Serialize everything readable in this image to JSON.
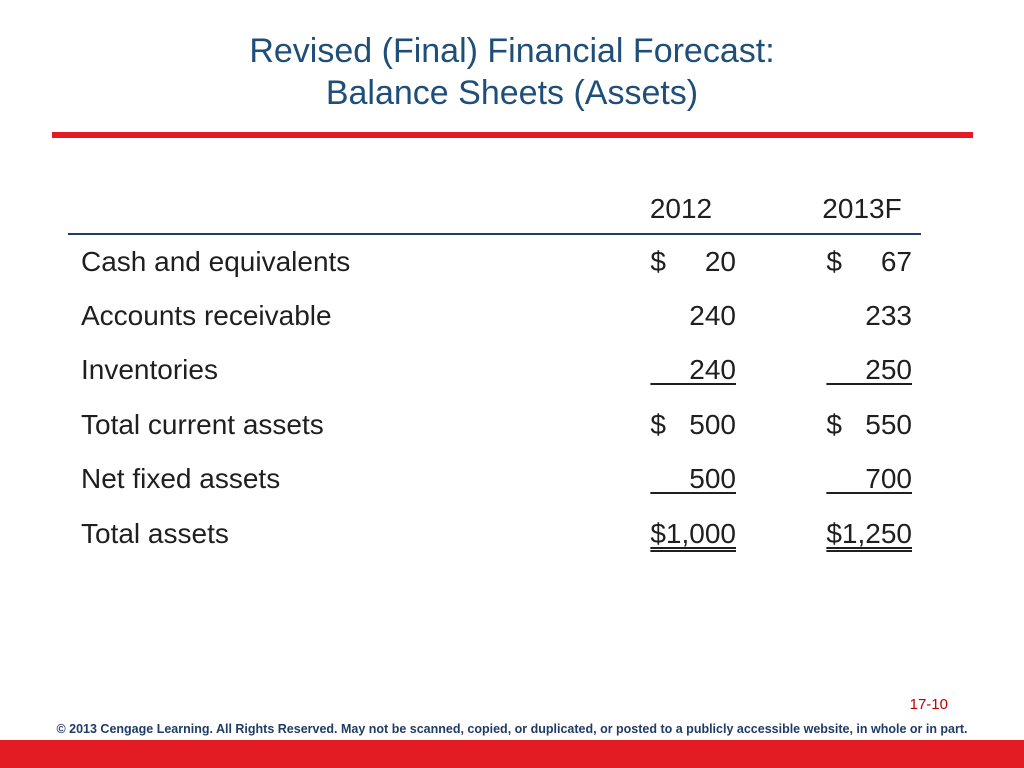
{
  "title": {
    "line1": "Revised (Final) Financial Forecast:",
    "line2": "Balance Sheets (Assets)"
  },
  "table": {
    "columns": [
      "2012",
      "2013F"
    ],
    "rows": [
      {
        "label": "Cash and equivalents",
        "v2012": "$     20",
        "v2013": "$     67"
      },
      {
        "label": "Accounts receivable",
        "v2012": "240",
        "v2013": "233"
      },
      {
        "label": "Inventories",
        "v2012": "     240",
        "v2013": "     250"
      },
      {
        "label": "Total current assets",
        "v2012": "$   500",
        "v2013": "$   550"
      },
      {
        "label": "Net fixed assets",
        "v2012": "     500",
        "v2013": "     700"
      },
      {
        "label": "Total assets",
        "v2012": "$1,000",
        "v2013": "$1,250"
      }
    ]
  },
  "footer": {
    "slide_number": "17-10",
    "copyright": "© 2013 Cengage Learning. All Rights Reserved. May not be scanned, copied, or duplicated, or posted to a publicly accessible website, in whole or in part."
  },
  "colors": {
    "title": "#1f4e79",
    "accent_red": "#e31b23",
    "rule_navy": "#1f3c66"
  }
}
